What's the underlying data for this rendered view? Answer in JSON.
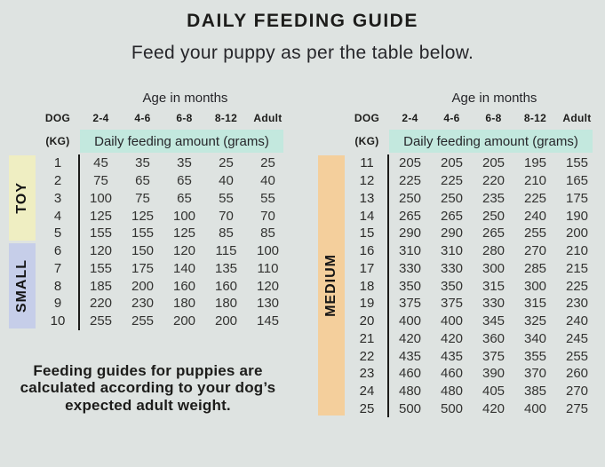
{
  "page": {
    "title": "DAILY FEEDING GUIDE",
    "subtitle": "Feed your puppy as per the table below.",
    "footnote": "Feeding guides for puppies are calculated according to your dog’s expected adult weight."
  },
  "colors": {
    "background": "#dee3e1",
    "amount_highlight": "#c3e8de",
    "toy": "#efeec2",
    "small": "#c6cee9",
    "medium": "#f4cf9c",
    "divider": "#1c1c1a",
    "text_dark": "#1c1c1a"
  },
  "chart_data": {
    "type": "table",
    "title": "DAILY FEEDING GUIDE",
    "subtitle": "Feed your puppy as per the table below.",
    "value_unit": "grams per day",
    "tables": [
      {
        "age_axis_label": "Age in months",
        "weight_column_label": "DOG",
        "weight_unit_label": "(KG)",
        "age_columns": [
          "2-4",
          "4-6",
          "6-8",
          "8-12",
          "Adult"
        ],
        "amount_label": "Daily feeding amount (grams)",
        "groups": [
          {
            "size_label": "TOY",
            "color_key": "toy",
            "rows": [
              [
                1,
                45,
                35,
                35,
                25,
                25
              ],
              [
                2,
                75,
                65,
                65,
                40,
                40
              ],
              [
                3,
                100,
                75,
                65,
                55,
                55
              ],
              [
                4,
                125,
                125,
                100,
                70,
                70
              ],
              [
                5,
                155,
                155,
                125,
                85,
                85
              ]
            ]
          },
          {
            "size_label": "SMALL",
            "color_key": "small",
            "rows": [
              [
                6,
                120,
                150,
                120,
                115,
                100
              ],
              [
                7,
                155,
                175,
                140,
                135,
                110
              ],
              [
                8,
                185,
                200,
                160,
                160,
                120
              ],
              [
                9,
                220,
                230,
                180,
                180,
                130
              ],
              [
                10,
                255,
                255,
                200,
                200,
                145
              ]
            ]
          }
        ]
      },
      {
        "age_axis_label": "Age in months",
        "weight_column_label": "DOG",
        "weight_unit_label": "(KG)",
        "age_columns": [
          "2-4",
          "4-6",
          "6-8",
          "8-12",
          "Adult"
        ],
        "amount_label": "Daily feeding amount (grams)",
        "groups": [
          {
            "size_label": "MEDIUM",
            "color_key": "medium",
            "rows": [
              [
                11,
                205,
                205,
                205,
                195,
                155
              ],
              [
                12,
                225,
                225,
                220,
                210,
                165
              ],
              [
                13,
                250,
                250,
                235,
                225,
                175
              ],
              [
                14,
                265,
                265,
                250,
                240,
                190
              ],
              [
                15,
                290,
                290,
                265,
                255,
                200
              ],
              [
                16,
                310,
                310,
                280,
                270,
                210
              ],
              [
                17,
                330,
                330,
                300,
                285,
                215
              ],
              [
                18,
                350,
                350,
                315,
                300,
                225
              ],
              [
                19,
                375,
                375,
                330,
                315,
                230
              ],
              [
                20,
                400,
                400,
                345,
                325,
                240
              ],
              [
                21,
                420,
                420,
                360,
                340,
                245
              ],
              [
                22,
                435,
                435,
                375,
                355,
                255
              ],
              [
                23,
                460,
                460,
                390,
                370,
                260
              ],
              [
                24,
                480,
                480,
                405,
                385,
                270
              ],
              [
                25,
                500,
                500,
                420,
                400,
                275
              ]
            ]
          }
        ]
      }
    ]
  }
}
